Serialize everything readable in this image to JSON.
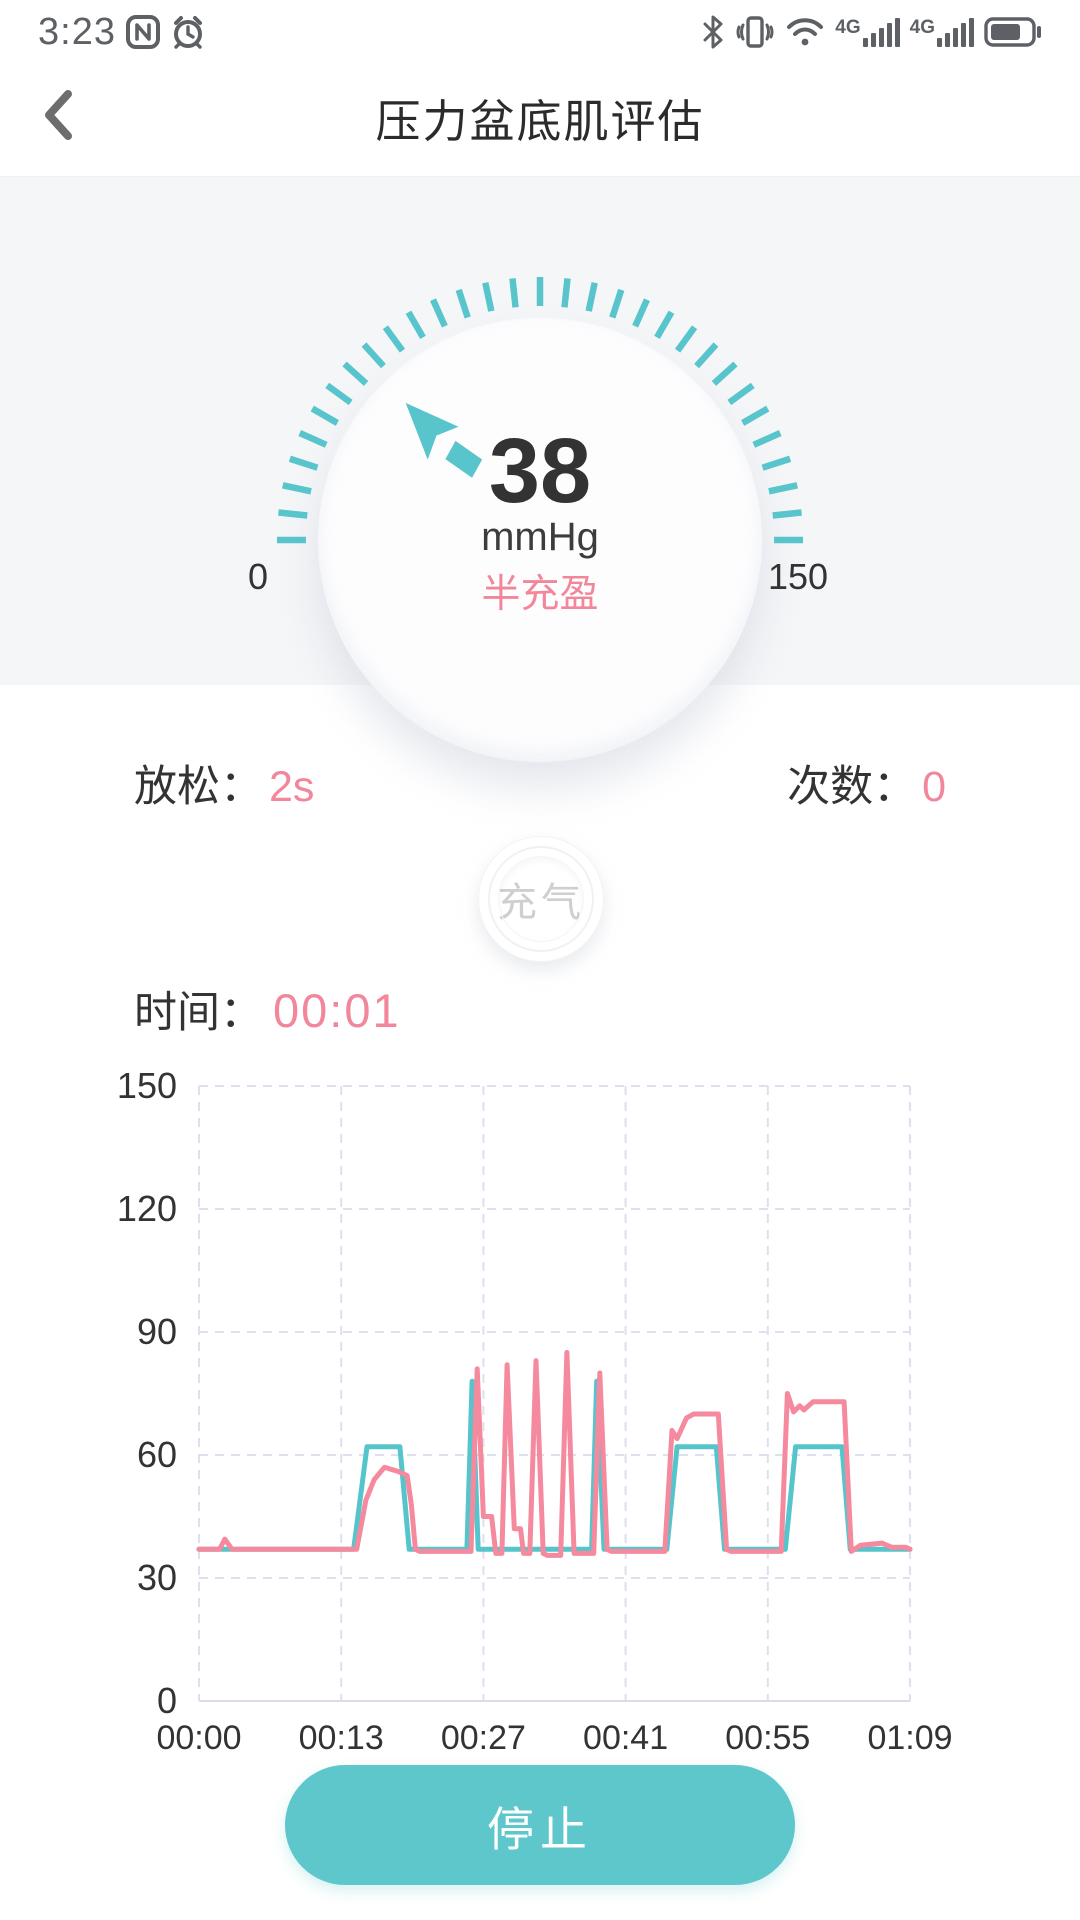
{
  "status_bar": {
    "time": "3:23",
    "left_icons": [
      "nfc-icon",
      "alarm-icon"
    ],
    "right_icons": [
      "bluetooth-icon",
      "vibrate-icon",
      "wifi-icon",
      "signal-4g-icon",
      "signal-4g-icon",
      "battery-icon"
    ],
    "network_label": "4G",
    "battery_percent": 75
  },
  "header": {
    "title": "压力盆底肌评估"
  },
  "gauge": {
    "value": "38",
    "value_num": 38,
    "min": 0,
    "max": 150,
    "min_label": "0",
    "max_label": "150",
    "unit": "mmHg",
    "status": "半充盈",
    "tick_count": 31,
    "tick_color": "#58c5cc",
    "pointer_color": "#58c5cc"
  },
  "metrics": {
    "relax_label": "放松：",
    "relax_value": "2s",
    "count_label": "次数：",
    "count_value": "0"
  },
  "inflate_button": {
    "label": "充气",
    "enabled": false
  },
  "timer": {
    "label": "时间：",
    "value": "00:01"
  },
  "chart_data": {
    "type": "line",
    "title": "",
    "xlabel": "",
    "ylabel": "",
    "x_tick_labels": [
      "00:00",
      "00:13",
      "00:27",
      "00:41",
      "00:55",
      "01:09"
    ],
    "x_range_seconds": [
      0,
      69
    ],
    "y_ticks": [
      0,
      30,
      60,
      90,
      120,
      150
    ],
    "ylim": [
      0,
      150
    ],
    "grid": "dashed",
    "grid_color": "#dde1ef",
    "legend": "none",
    "series": [
      {
        "name": "channel-teal",
        "color": "#56c4cb",
        "points": [
          [
            0,
            37
          ],
          [
            15.0,
            37
          ],
          [
            16.3,
            62
          ],
          [
            19.5,
            62
          ],
          [
            20.4,
            37
          ],
          [
            26.0,
            37
          ],
          [
            26.5,
            78
          ],
          [
            27.1,
            37
          ],
          [
            38.1,
            37
          ],
          [
            38.6,
            78
          ],
          [
            39.3,
            37
          ],
          [
            45.4,
            37
          ],
          [
            46.4,
            62
          ],
          [
            50.2,
            62
          ],
          [
            51.0,
            37
          ],
          [
            56.9,
            37
          ],
          [
            57.9,
            62
          ],
          [
            62.4,
            62
          ],
          [
            63.2,
            37
          ],
          [
            69,
            37
          ]
        ]
      },
      {
        "name": "channel-pink",
        "color": "#f5899e",
        "points": [
          [
            0,
            37
          ],
          [
            2.0,
            37
          ],
          [
            2.5,
            39.5
          ],
          [
            3.2,
            37
          ],
          [
            15.3,
            37
          ],
          [
            16.2,
            49
          ],
          [
            17.0,
            54
          ],
          [
            18.0,
            57
          ],
          [
            19.3,
            56
          ],
          [
            20.2,
            55
          ],
          [
            20.6,
            48
          ],
          [
            21.0,
            37
          ],
          [
            21.4,
            36.5
          ],
          [
            26.4,
            36.5
          ],
          [
            27.0,
            81
          ],
          [
            27.6,
            45
          ],
          [
            28.4,
            45
          ],
          [
            28.8,
            36
          ],
          [
            29.4,
            36
          ],
          [
            29.9,
            82
          ],
          [
            30.6,
            42
          ],
          [
            31.2,
            42
          ],
          [
            31.5,
            36
          ],
          [
            32.1,
            36
          ],
          [
            32.7,
            83
          ],
          [
            33.4,
            36
          ],
          [
            33.8,
            35.5
          ],
          [
            35.1,
            35.5
          ],
          [
            35.7,
            85
          ],
          [
            36.4,
            36
          ],
          [
            38.3,
            36
          ],
          [
            38.9,
            80
          ],
          [
            39.6,
            37
          ],
          [
            40.0,
            36.5
          ],
          [
            45.2,
            36.5
          ],
          [
            45.9,
            66
          ],
          [
            46.4,
            64
          ],
          [
            47.3,
            69
          ],
          [
            48.0,
            70
          ],
          [
            50.4,
            70
          ],
          [
            51.2,
            37
          ],
          [
            51.6,
            36.5
          ],
          [
            56.5,
            36.5
          ],
          [
            57.1,
            75
          ],
          [
            57.7,
            70.5
          ],
          [
            58.3,
            72
          ],
          [
            58.7,
            71
          ],
          [
            59.6,
            73
          ],
          [
            62.6,
            73
          ],
          [
            63.3,
            36.5
          ],
          [
            64.2,
            38
          ],
          [
            66.3,
            38.5
          ],
          [
            67.2,
            37.5
          ],
          [
            68.6,
            37.5
          ],
          [
            69,
            37
          ]
        ]
      }
    ]
  },
  "stop_button": {
    "label": "停止"
  },
  "colors": {
    "accent_teal": "#5ec7cc",
    "accent_pink": "#f2879c",
    "panel_gray": "#f5f6f8",
    "text_dark": "#333333",
    "status_icon_gray": "#5d6165"
  }
}
